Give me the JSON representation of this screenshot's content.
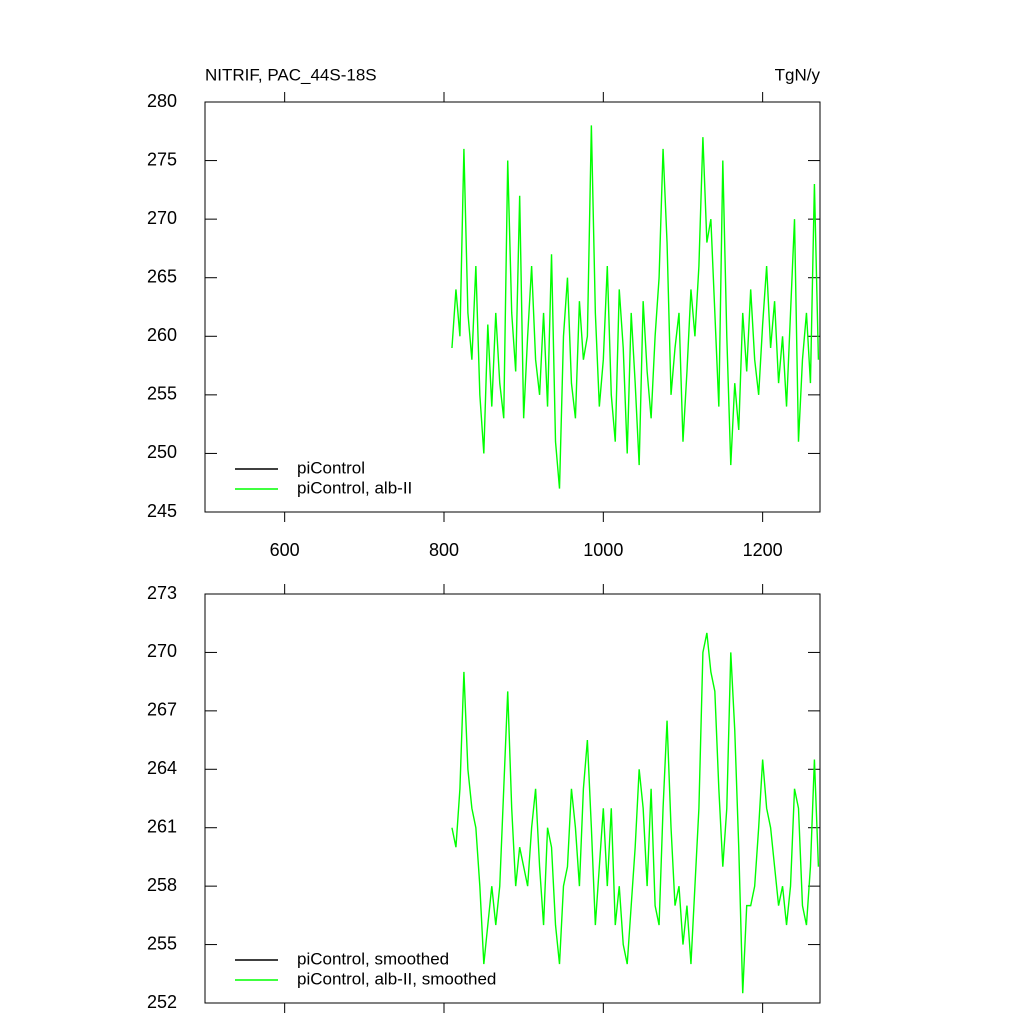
{
  "chart_data": [
    {
      "type": "line",
      "title": "NITRIF, PAC_44S-18S",
      "units": "TgN/y",
      "x": [
        810,
        815,
        820,
        825,
        830,
        835,
        840,
        845,
        850,
        855,
        860,
        865,
        870,
        875,
        880,
        885,
        890,
        895,
        900,
        905,
        910,
        915,
        920,
        925,
        930,
        935,
        940,
        945,
        950,
        955,
        960,
        965,
        970,
        975,
        980,
        985,
        990,
        995,
        1000,
        1005,
        1010,
        1015,
        1020,
        1025,
        1030,
        1035,
        1040,
        1045,
        1050,
        1055,
        1060,
        1065,
        1070,
        1075,
        1080,
        1085,
        1090,
        1095,
        1100,
        1105,
        1110,
        1115,
        1120,
        1125,
        1130,
        1135,
        1140,
        1145,
        1150,
        1155,
        1160,
        1165,
        1170,
        1175,
        1180,
        1185,
        1190,
        1195,
        1200,
        1205,
        1210,
        1215,
        1220,
        1225,
        1230,
        1235,
        1240,
        1245,
        1250,
        1255,
        1260,
        1265,
        1270
      ],
      "series": [
        {
          "name": "piControl",
          "color": "#000000"
        },
        {
          "name": "piControl, alb-II",
          "color": "#00ff00",
          "values": [
            259,
            264,
            260,
            276,
            262,
            258,
            266,
            255,
            250,
            261,
            254,
            262,
            256,
            253,
            275,
            262,
            257,
            272,
            253,
            260,
            266,
            258,
            255,
            262,
            254,
            267,
            251,
            247,
            260,
            265,
            256,
            253,
            263,
            258,
            260,
            278,
            262,
            254,
            258,
            266,
            255,
            251,
            264,
            259,
            250,
            262,
            256,
            249,
            263,
            257,
            253,
            260,
            265,
            276,
            268,
            255,
            259,
            262,
            251,
            257,
            264,
            260,
            266,
            277,
            268,
            270,
            262,
            254,
            275,
            260,
            249,
            256,
            252,
            262,
            257,
            264,
            258,
            255,
            261,
            266,
            259,
            263,
            256,
            260,
            254,
            262,
            270,
            251,
            258,
            262,
            256,
            273,
            258
          ]
        }
      ],
      "xlim": [
        500,
        1272
      ],
      "xticks": [
        600,
        800,
        1000,
        1200
      ],
      "ylim": [
        245,
        280
      ],
      "yticks": [
        245,
        250,
        255,
        260,
        265,
        270,
        275,
        280
      ],
      "legend": "lower left"
    },
    {
      "type": "line",
      "x": [
        810,
        815,
        820,
        825,
        830,
        835,
        840,
        845,
        850,
        855,
        860,
        865,
        870,
        875,
        880,
        885,
        890,
        895,
        900,
        905,
        910,
        915,
        920,
        925,
        930,
        935,
        940,
        945,
        950,
        955,
        960,
        965,
        970,
        975,
        980,
        985,
        990,
        995,
        1000,
        1005,
        1010,
        1015,
        1020,
        1025,
        1030,
        1035,
        1040,
        1045,
        1050,
        1055,
        1060,
        1065,
        1070,
        1075,
        1080,
        1085,
        1090,
        1095,
        1100,
        1105,
        1110,
        1115,
        1120,
        1125,
        1130,
        1135,
        1140,
        1145,
        1150,
        1155,
        1160,
        1165,
        1170,
        1175,
        1180,
        1185,
        1190,
        1195,
        1200,
        1205,
        1210,
        1215,
        1220,
        1225,
        1230,
        1235,
        1240,
        1245,
        1250,
        1255,
        1260,
        1265,
        1270
      ],
      "series": [
        {
          "name": "piControl, smoothed",
          "color": "#000000"
        },
        {
          "name": "piControl, alb-II, smoothed",
          "color": "#00ff00",
          "values": [
            261,
            260,
            263,
            269,
            264,
            262,
            261,
            258,
            254,
            256,
            258,
            256,
            258,
            263,
            268,
            262,
            258,
            260,
            259,
            258,
            261,
            263,
            259,
            256,
            261,
            260,
            256,
            254,
            258,
            259,
            263,
            261,
            258,
            263,
            265.5,
            261,
            256,
            259,
            262,
            258,
            262,
            256,
            258,
            255,
            254,
            257,
            260,
            264,
            262,
            258,
            263,
            257,
            256,
            262,
            266.5,
            261,
            257,
            258,
            255,
            257,
            254,
            258,
            262,
            270,
            271,
            269,
            268,
            263,
            259,
            262,
            270,
            266,
            260,
            252.5,
            257,
            257,
            258,
            261,
            264.5,
            262,
            261,
            259,
            257,
            258,
            256,
            258,
            263,
            262,
            257,
            256,
            259,
            264.5,
            259
          ]
        }
      ],
      "xlim": [
        500,
        1272
      ],
      "xticks": [
        600,
        800,
        1000,
        1200
      ],
      "ylim": [
        252,
        273
      ],
      "yticks": [
        252,
        255,
        258,
        261,
        264,
        267,
        270,
        273
      ],
      "legend": "lower left"
    }
  ]
}
